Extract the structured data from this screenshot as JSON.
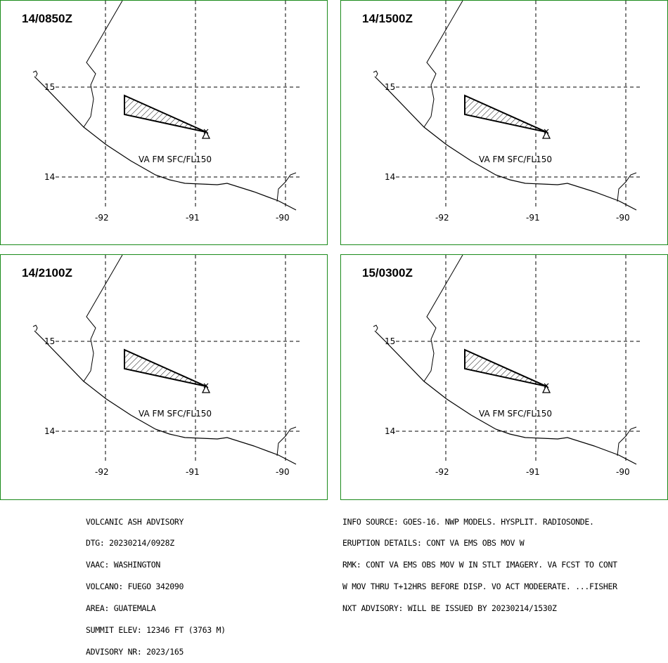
{
  "panels": [
    {
      "time": "14/0850Z",
      "label": "VA FM SFC/FL150"
    },
    {
      "time": "14/1500Z",
      "label": "VA FM SFC/FL150"
    },
    {
      "time": "14/2100Z",
      "label": "VA FM SFC/FL150"
    },
    {
      "time": "15/0300Z",
      "label": "VA FM SFC/FL150"
    }
  ],
  "axes": {
    "lat_labels": [
      "15",
      "14"
    ],
    "lon_labels": [
      "-92",
      "-91",
      "-90"
    ]
  },
  "colors": {
    "border": "#1a8a1a",
    "ink": "#000000"
  },
  "advisory_left": [
    "VOLCANIC ASH ADVISORY",
    "DTG: 20230214/0928Z",
    "VAAC: WASHINGTON",
    "VOLCANO: FUEGO 342090",
    "AREA: GUATEMALA",
    "SUMMIT ELEV: 12346 FT (3763 M)",
    "ADVISORY NR: 2023/165"
  ],
  "advisory_right": [
    "INFO SOURCE: GOES-16. NWP MODELS. HYSPLIT. RADIOSONDE.",
    "ERUPTION DETAILS: CONT VA EMS OBS MOV W",
    "RMK: CONT VA EMS OBS MOV W IN STLT IMAGERY. VA FCST TO CONT",
    "W MOV THRU T+12HRS BEFORE DISP. VO ACT MODEERATE. ...FISHER",
    "NXT ADVISORY: WILL BE ISSUED BY 20230214/1530Z"
  ]
}
